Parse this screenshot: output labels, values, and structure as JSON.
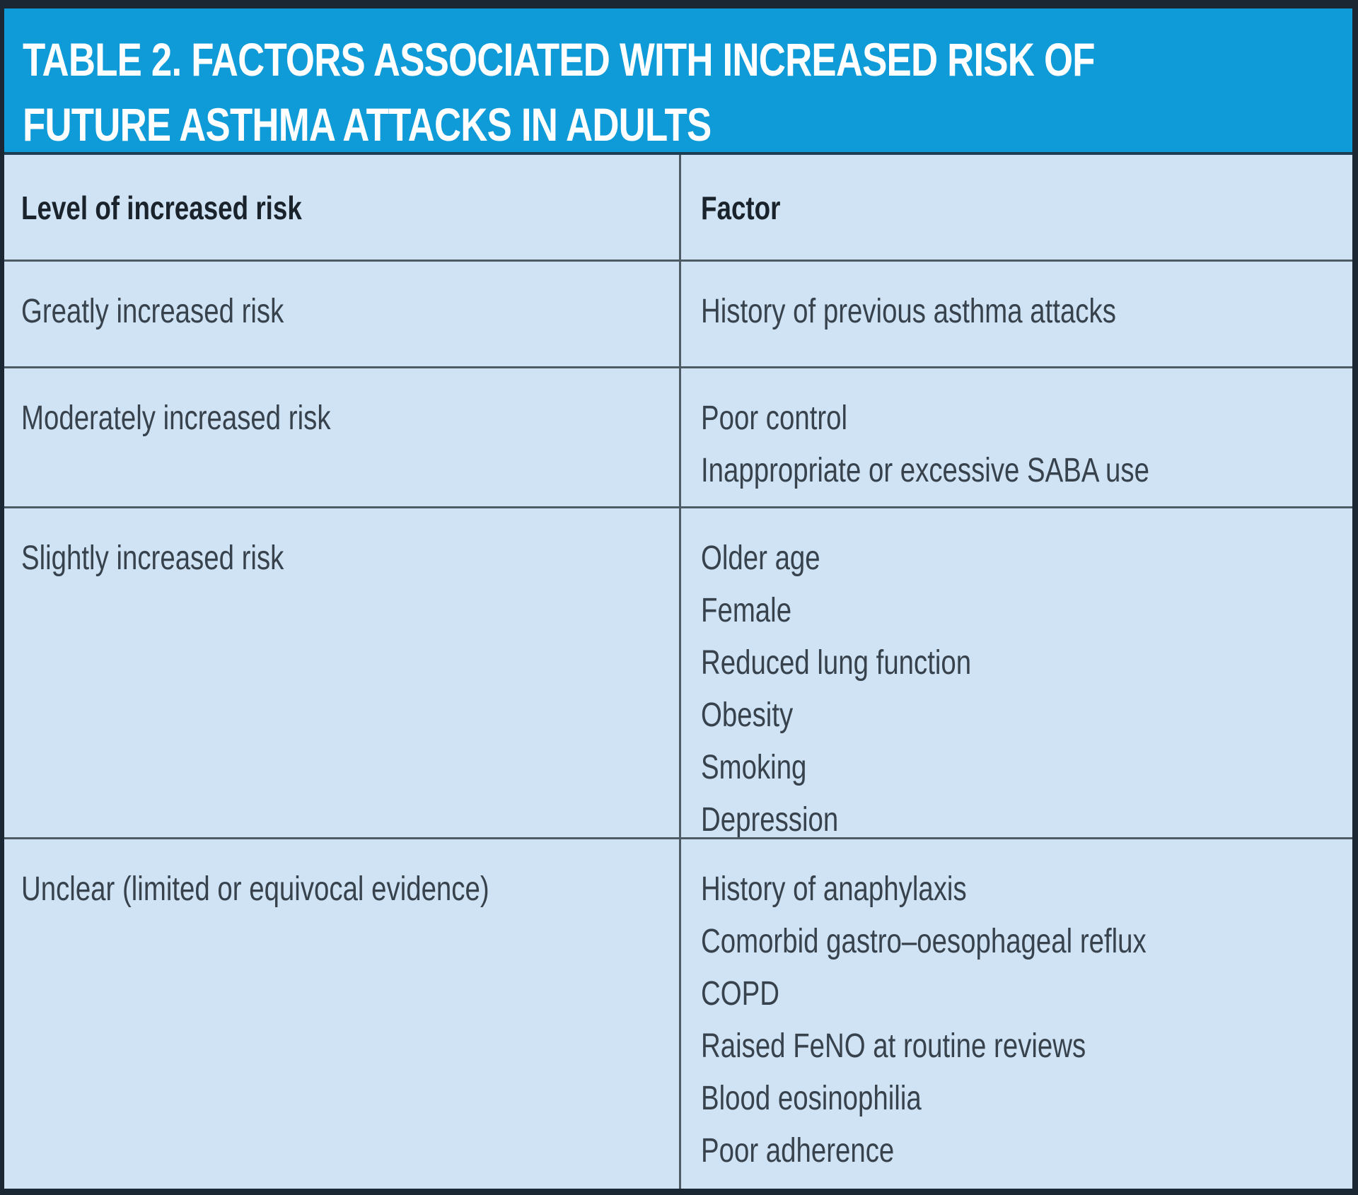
{
  "table": {
    "title_line1": "TABLE 2. FACTORS ASSOCIATED WITH INCREASED RISK OF",
    "title_line2": "FUTURE ASTHMA ATTACKS IN ADULTS",
    "columns": {
      "level": "Level of increased risk",
      "factor": "Factor"
    },
    "rows": [
      {
        "level": "Greatly increased risk",
        "factors": [
          "History of previous asthma attacks"
        ]
      },
      {
        "level": "Moderately increased risk",
        "factors": [
          "Poor control",
          "Inappropriate or excessive SABA use"
        ]
      },
      {
        "level": "Slightly increased risk",
        "factors": [
          "Older age",
          "Female",
          "Reduced lung function",
          "Obesity",
          "Smoking",
          "Depression"
        ]
      },
      {
        "level": "Unclear (limited or equivocal evidence)",
        "factors": [
          "History of anaphylaxis",
          "Comorbid gastro–oesophageal reflux",
          "COPD",
          "Raised FeNO at routine reviews",
          "Blood eosinophilia",
          "Poor adherence"
        ]
      }
    ],
    "colors": {
      "header_bg": "#0F9AD8",
      "body_bg": "#CFE3F5",
      "outer_border": "#1B2733",
      "divider": "#4E5A64",
      "header_underline": "#1D3D52",
      "title_text": "#FFFFFF",
      "body_text": "#37424C"
    }
  }
}
